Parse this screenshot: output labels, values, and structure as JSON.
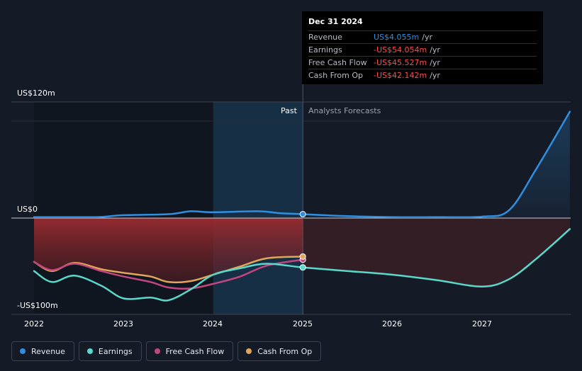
{
  "chart_data": {
    "type": "line",
    "y_axis": {
      "labels": [
        "US$120m",
        "US$0",
        "-US$100m"
      ],
      "range": [
        -100,
        120
      ]
    },
    "x_axis": {
      "labels": [
        "2022",
        "2023",
        "2024",
        "2025",
        "2026",
        "2027"
      ],
      "range": [
        2021.78,
        2027.98
      ]
    },
    "regions": {
      "past_label": "Past",
      "forecast_label": "Analysts Forecasts",
      "divider_x": 2025.0,
      "past_start_x": 2024.0
    },
    "series": [
      {
        "name": "Revenue",
        "color": "#2f8fe0",
        "points": [
          [
            2022.0,
            1.0
          ],
          [
            2022.5,
            1.0
          ],
          [
            2022.75,
            1.2
          ],
          [
            2023.0,
            3.0
          ],
          [
            2023.5,
            4.0
          ],
          [
            2023.75,
            7.0
          ],
          [
            2024.0,
            6.0
          ],
          [
            2024.5,
            7.0
          ],
          [
            2024.75,
            5.0
          ],
          [
            2025.0,
            4.055
          ],
          [
            2025.5,
            2.0
          ],
          [
            2026.0,
            1.0
          ],
          [
            2026.5,
            1.0
          ],
          [
            2027.0,
            1.5
          ],
          [
            2027.3,
            8.0
          ],
          [
            2027.6,
            50.0
          ],
          [
            2027.98,
            110.0
          ]
        ]
      },
      {
        "name": "Earnings",
        "color": "#5ad8cc",
        "points": [
          [
            2022.0,
            -58.0
          ],
          [
            2022.2,
            -70.0
          ],
          [
            2022.45,
            -63.0
          ],
          [
            2022.75,
            -74.0
          ],
          [
            2023.0,
            -88.0
          ],
          [
            2023.3,
            -87.0
          ],
          [
            2023.5,
            -90.0
          ],
          [
            2023.75,
            -78.0
          ],
          [
            2024.0,
            -62.0
          ],
          [
            2024.3,
            -55.0
          ],
          [
            2024.6,
            -50.0
          ],
          [
            2025.0,
            -54.054
          ],
          [
            2025.5,
            -58.0
          ],
          [
            2026.0,
            -62.0
          ],
          [
            2026.5,
            -68.0
          ],
          [
            2027.0,
            -75.0
          ],
          [
            2027.3,
            -67.0
          ],
          [
            2027.6,
            -45.0
          ],
          [
            2027.98,
            -12.0
          ]
        ]
      },
      {
        "name": "Free Cash Flow",
        "color": "#c2467f",
        "points": [
          [
            2022.0,
            -48.0
          ],
          [
            2022.2,
            -57.0
          ],
          [
            2022.45,
            -50.0
          ],
          [
            2022.75,
            -58.0
          ],
          [
            2023.0,
            -64.0
          ],
          [
            2023.3,
            -70.0
          ],
          [
            2023.5,
            -76.0
          ],
          [
            2023.75,
            -77.0
          ],
          [
            2024.0,
            -72.0
          ],
          [
            2024.3,
            -64.0
          ],
          [
            2024.6,
            -52.0
          ],
          [
            2025.0,
            -45.527
          ]
        ]
      },
      {
        "name": "Cash From Op",
        "color": "#e0a659",
        "points": [
          [
            2022.0,
            -48.0
          ],
          [
            2022.2,
            -58.0
          ],
          [
            2022.45,
            -49.0
          ],
          [
            2022.75,
            -56.0
          ],
          [
            2023.0,
            -60.0
          ],
          [
            2023.3,
            -64.0
          ],
          [
            2023.5,
            -70.0
          ],
          [
            2023.75,
            -69.0
          ],
          [
            2024.0,
            -62.0
          ],
          [
            2024.3,
            -53.0
          ],
          [
            2024.6,
            -44.0
          ],
          [
            2025.0,
            -42.142
          ]
        ]
      }
    ]
  },
  "tooltip": {
    "date": "Dec 31 2024",
    "rows": [
      {
        "name": "Revenue",
        "value": "US$4.055m",
        "unit": "/yr",
        "color": "#2f8fe0"
      },
      {
        "name": "Earnings",
        "value": "-US$54.054m",
        "unit": "/yr",
        "color": "#ff4d4d"
      },
      {
        "name": "Free Cash Flow",
        "value": "-US$45.527m",
        "unit": "/yr",
        "color": "#ff4d4d"
      },
      {
        "name": "Cash From Op",
        "value": "-US$42.142m",
        "unit": "/yr",
        "color": "#ff4d4d"
      }
    ]
  },
  "legend": [
    {
      "label": "Revenue",
      "color": "#2f8fe0"
    },
    {
      "label": "Earnings",
      "color": "#5ad8cc"
    },
    {
      "label": "Free Cash Flow",
      "color": "#c2467f"
    },
    {
      "label": "Cash From Op",
      "color": "#e0a659"
    }
  ]
}
